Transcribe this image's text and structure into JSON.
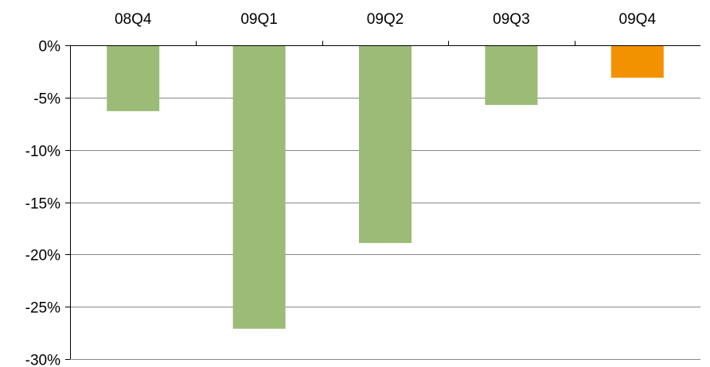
{
  "chart_data": {
    "type": "bar",
    "categories": [
      "08Q4",
      "09Q1",
      "09Q2",
      "09Q3",
      "09Q4"
    ],
    "values": [
      -6.3,
      -27.1,
      -18.9,
      -5.7,
      -3.1
    ],
    "bar_colors": [
      "#9BBB77",
      "#9BBB77",
      "#9BBB77",
      "#9BBB77",
      "#F39200"
    ],
    "ylim": [
      -30,
      0
    ],
    "yticks": [
      0,
      -5,
      -10,
      -15,
      -20,
      -25,
      -30
    ],
    "ytick_labels": [
      "0%",
      "-5%",
      "-10%",
      "-15%",
      "-20%",
      "-25%",
      "-30%"
    ],
    "x_axis_position": "top",
    "grid": true,
    "legend": "none"
  },
  "colors": {
    "gridline": "#888888",
    "axis": "#000000"
  }
}
